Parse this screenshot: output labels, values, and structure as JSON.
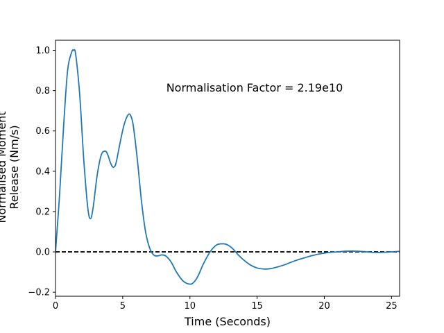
{
  "chart_data": {
    "type": "line",
    "xlabel": "Time (Seconds)",
    "ylabel_lines": [
      "Normalised Moment",
      "Release (Nm/s)"
    ],
    "annotation": "Normalisation Factor = 2.19e10",
    "xlim": [
      0,
      25.6
    ],
    "ylim": [
      -0.22,
      1.05
    ],
    "xticks": [
      0,
      5,
      10,
      15,
      20,
      25
    ],
    "yticks": [
      -0.2,
      0.0,
      0.2,
      0.4,
      0.6,
      0.8,
      1.0
    ],
    "xtick_labels": [
      "0",
      "5",
      "10",
      "15",
      "20",
      "25"
    ],
    "ytick_labels": [
      "−0.2",
      "0.0",
      "0.2",
      "0.4",
      "0.6",
      "0.8",
      "1.0"
    ],
    "grid": false,
    "reference_line": {
      "y": 0.0,
      "style": "dashed",
      "color": "#000000"
    },
    "series": [
      {
        "color": "#1f77b4",
        "x": [
          0,
          0.3,
          0.6,
          0.9,
          1.2,
          1.35,
          1.5,
          1.8,
          2.1,
          2.4,
          2.6,
          2.8,
          3.1,
          3.4,
          3.7,
          3.9,
          4.1,
          4.3,
          4.5,
          4.8,
          5.1,
          5.4,
          5.6,
          5.8,
          6.1,
          6.4,
          6.7,
          7.0,
          7.3,
          7.6,
          7.9,
          8.2,
          8.6,
          9.0,
          9.5,
          10.0,
          10.3,
          10.6,
          11.0,
          11.5,
          12.0,
          12.5,
          12.8,
          13.2,
          13.6,
          14.0,
          14.5,
          15.0,
          15.5,
          16.0,
          16.5,
          17.0,
          17.5,
          18.0,
          18.5,
          19.0,
          19.5,
          20.0,
          20.5,
          21.0,
          21.5,
          22.0,
          22.5,
          23.0,
          23.5,
          24.0,
          24.5,
          25.0,
          25.6
        ],
        "y": [
          0.0,
          0.28,
          0.62,
          0.9,
          0.99,
          1.0,
          0.98,
          0.78,
          0.46,
          0.22,
          0.165,
          0.22,
          0.38,
          0.48,
          0.5,
          0.48,
          0.44,
          0.42,
          0.44,
          0.54,
          0.63,
          0.68,
          0.675,
          0.62,
          0.45,
          0.25,
          0.1,
          0.02,
          -0.015,
          -0.02,
          -0.015,
          -0.02,
          -0.05,
          -0.1,
          -0.145,
          -0.16,
          -0.15,
          -0.12,
          -0.06,
          0.0,
          0.035,
          0.04,
          0.035,
          0.015,
          -0.015,
          -0.04,
          -0.065,
          -0.08,
          -0.085,
          -0.083,
          -0.075,
          -0.065,
          -0.052,
          -0.04,
          -0.03,
          -0.02,
          -0.012,
          -0.006,
          -0.002,
          0.0,
          0.003,
          0.004,
          0.003,
          0.001,
          -0.002,
          -0.003,
          -0.002,
          0.0,
          0.003
        ]
      }
    ]
  }
}
